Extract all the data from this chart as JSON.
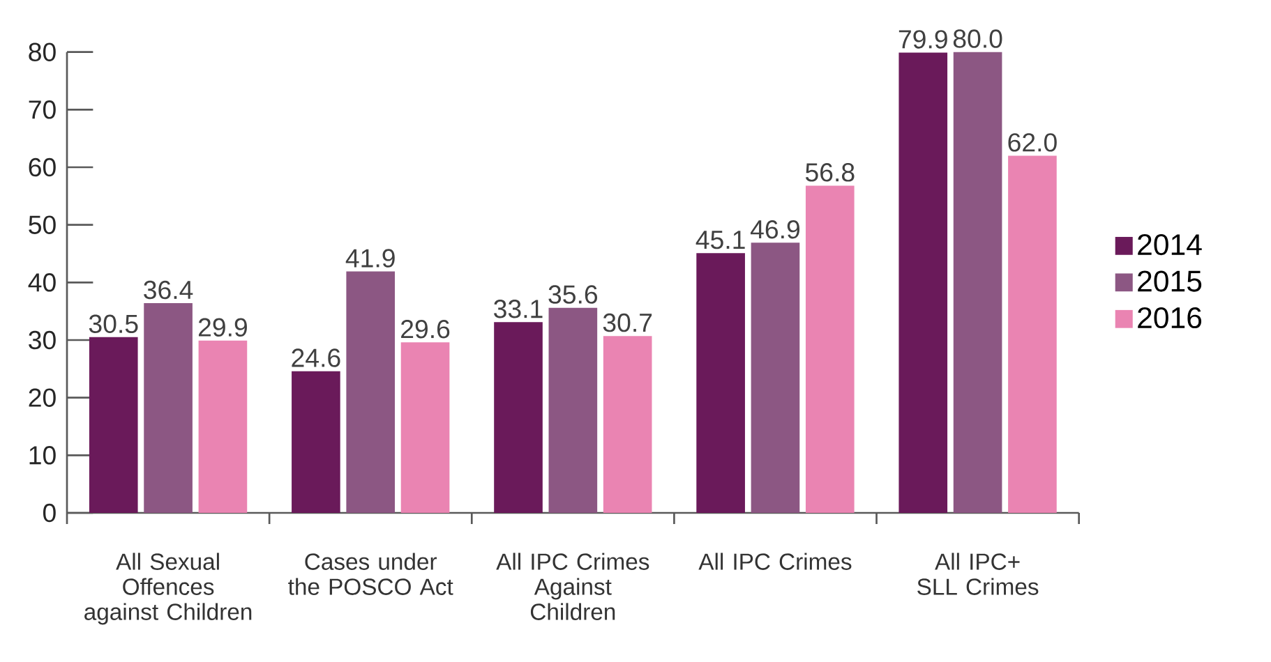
{
  "chart_data": {
    "type": "bar",
    "categories": [
      "All Sexual Offences against Children",
      "Cases under the POSCO Act",
      "All IPC Crimes Against Children",
      "All IPC Crimes",
      "All IPC+ SLL Crimes"
    ],
    "series": [
      {
        "name": "2014",
        "color": "#6a1a5a",
        "values": [
          30.5,
          24.6,
          33.1,
          45.1,
          79.9
        ],
        "value_labels": [
          "30.5",
          "24.6",
          "33.1",
          "45.1",
          "79.9"
        ]
      },
      {
        "name": "2015",
        "color": "#8c5783",
        "values": [
          36.4,
          41.9,
          35.6,
          46.9,
          80.0
        ],
        "value_labels": [
          "36.4",
          "41.9",
          "35.6",
          "46.9",
          "80.0"
        ]
      },
      {
        "name": "2016",
        "color": "#ea84b2",
        "values": [
          29.9,
          29.6,
          30.7,
          56.8,
          62.0
        ],
        "value_labels": [
          "29.9",
          "29.6",
          "30.7",
          "56.8",
          "62.0"
        ]
      }
    ],
    "ylim": [
      0,
      80
    ],
    "yticks": [
      0,
      10,
      20,
      30,
      40,
      50,
      60,
      70,
      80
    ],
    "legend": "right"
  }
}
